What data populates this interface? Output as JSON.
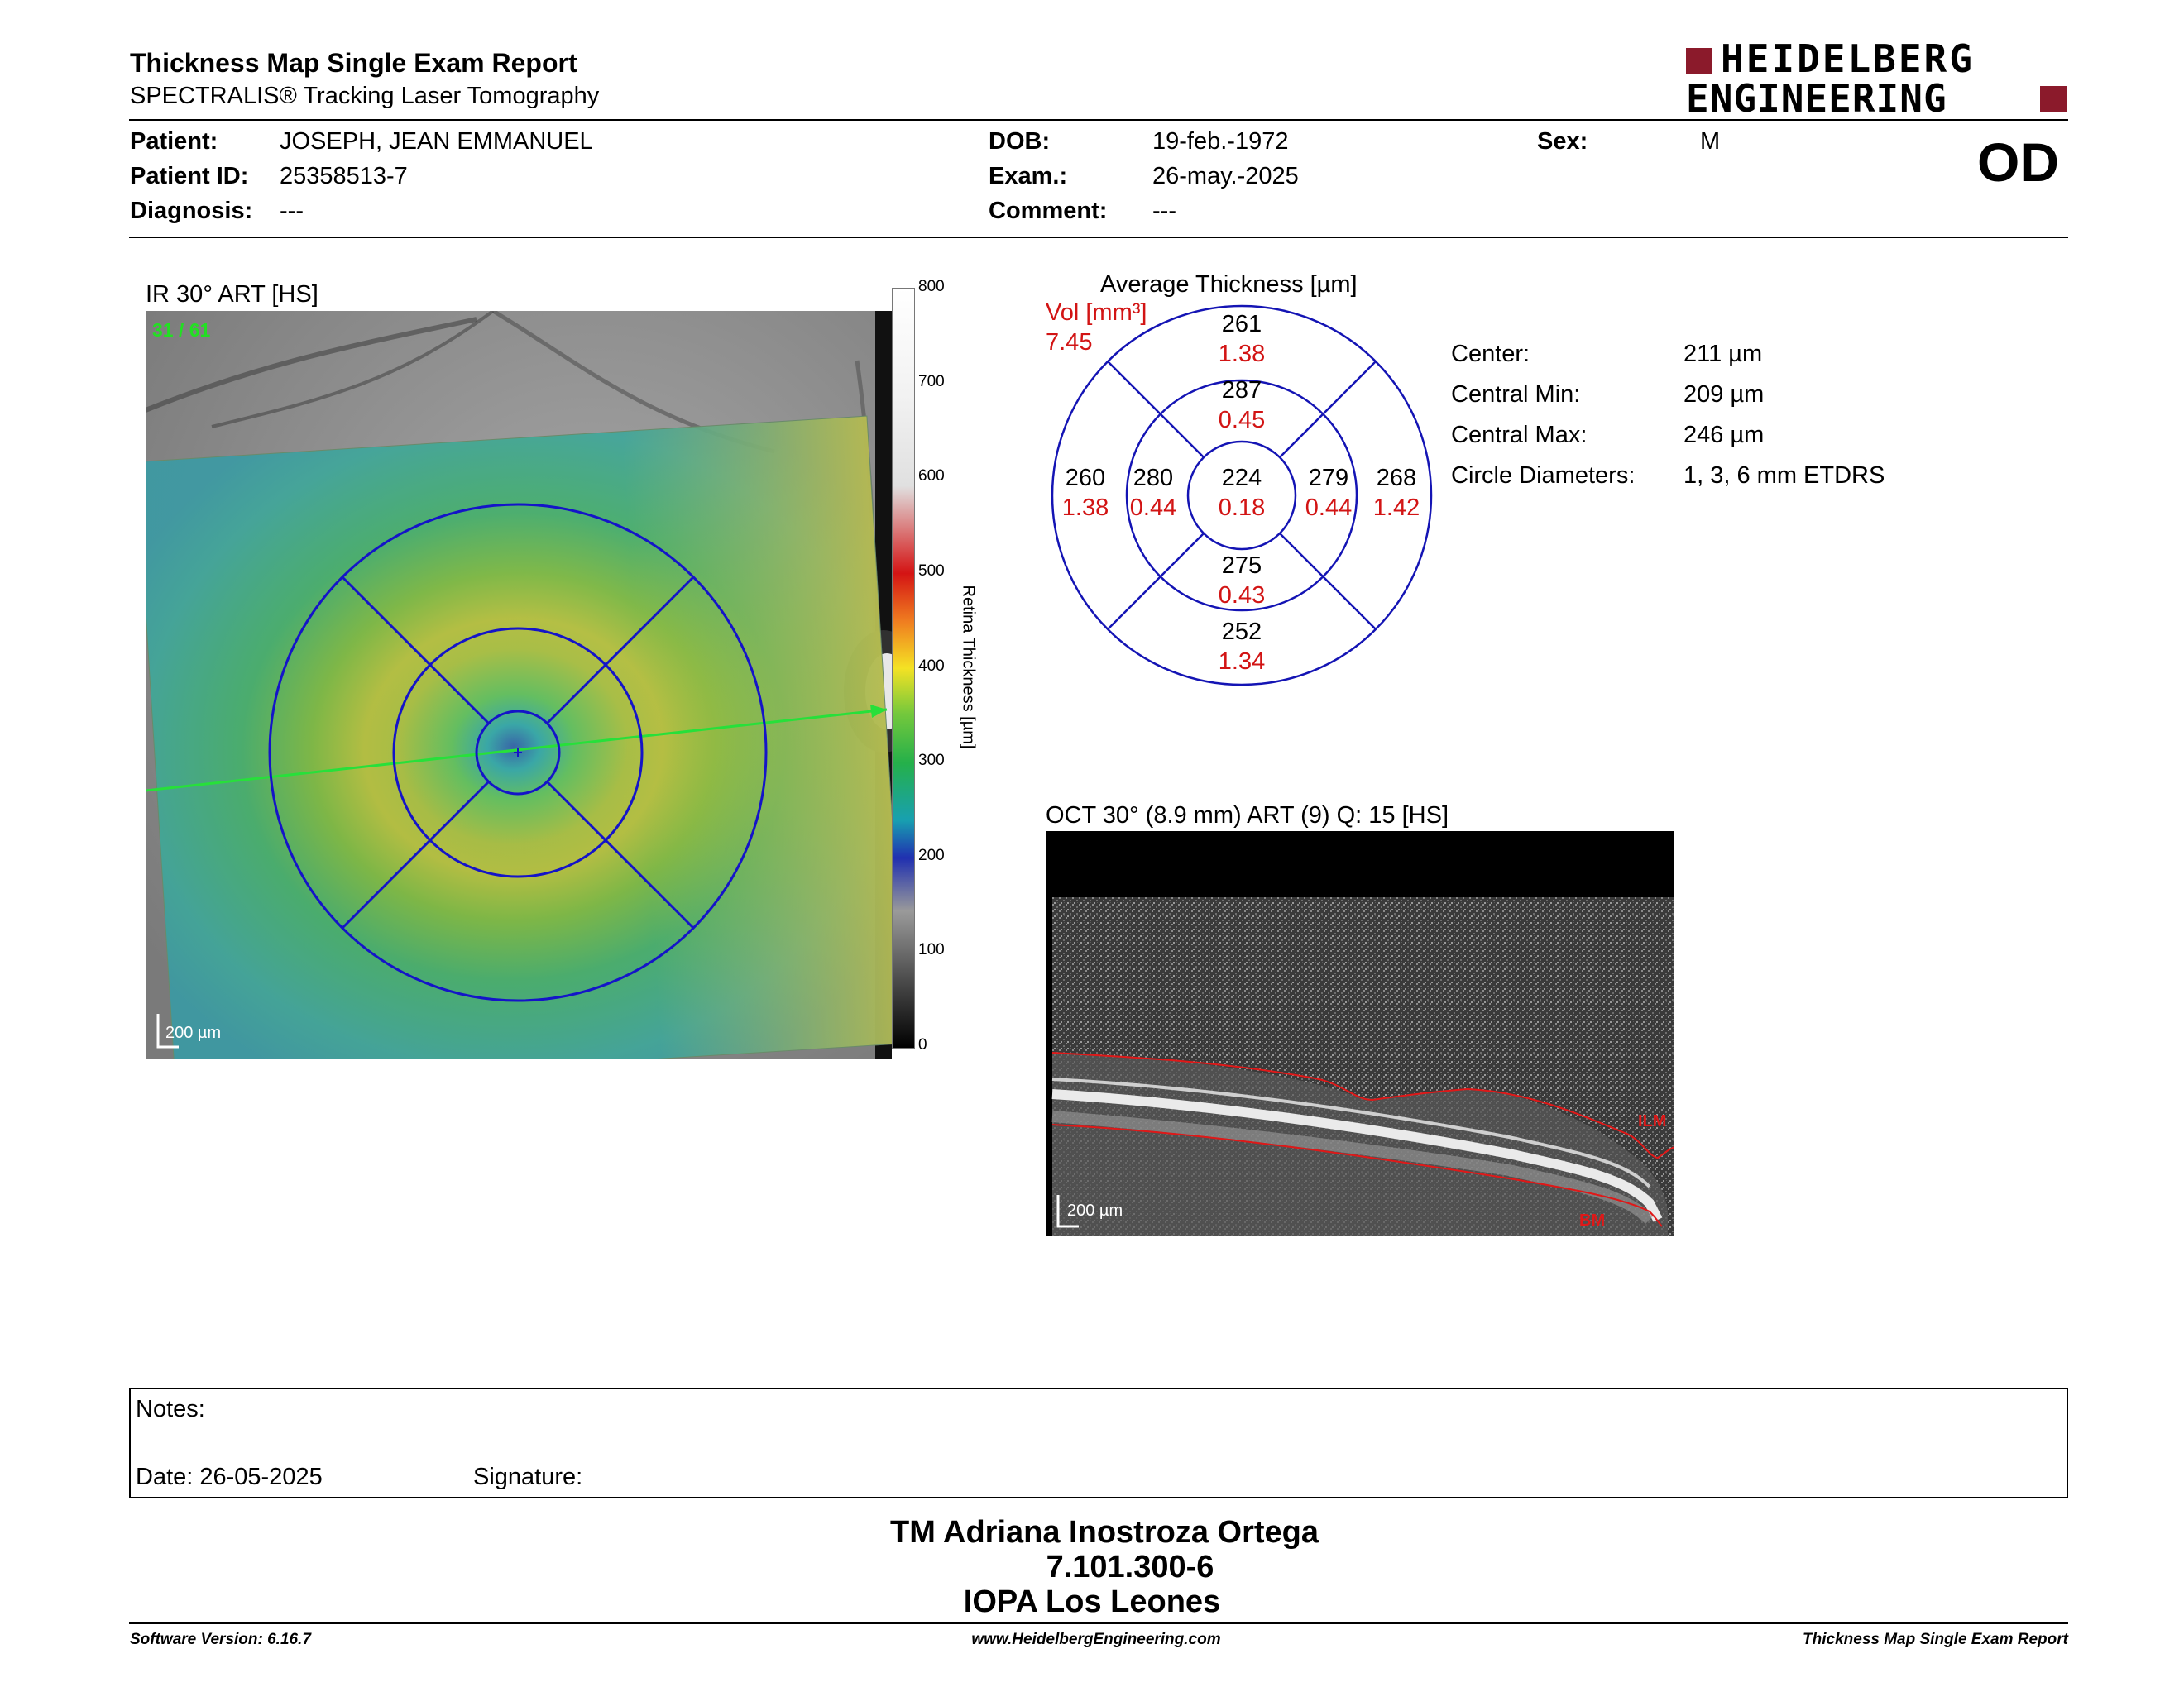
{
  "report": {
    "title": "Thickness Map Single Exam Report",
    "subtitle": "SPECTRALIS® Tracking Laser Tomography",
    "eye": "OD"
  },
  "brand": {
    "line1": "HEIDELBERG",
    "line2": "ENGINEERING",
    "color": "#8b1a2b"
  },
  "patient": {
    "name_label": "Patient:",
    "name": "JOSEPH, JEAN EMMANUEL",
    "id_label": "Patient ID:",
    "id": "25358513-7",
    "diagnosis_label": "Diagnosis:",
    "diagnosis": "---",
    "dob_label": "DOB:",
    "dob": "19-feb.-1972",
    "exam_label": "Exam.:",
    "exam": "26-may.-2025",
    "comment_label": "Comment:",
    "comment": "---",
    "sex_label": "Sex:",
    "sex": "M"
  },
  "ir_image": {
    "title": "IR 30° ART [HS]",
    "frame": "31 / 61",
    "scale": "200 µm",
    "colorbar": {
      "label": "Retina Thickness [µm]",
      "ticks": [
        "800",
        "700",
        "600",
        "500",
        "400",
        "300",
        "200",
        "100",
        "0"
      ]
    }
  },
  "etdrs": {
    "title": "Average Thickness [µm]",
    "vol_label": "Vol [mm³]",
    "vol_total": "7.45",
    "sectors": {
      "center": {
        "thickness": "224",
        "volume": "0.18"
      },
      "inner_superior": {
        "thickness": "287",
        "volume": "0.45"
      },
      "inner_inferior": {
        "thickness": "275",
        "volume": "0.43"
      },
      "inner_nasal_left": {
        "thickness": "280",
        "volume": "0.44"
      },
      "inner_temporal_right": {
        "thickness": "279",
        "volume": "0.44"
      },
      "outer_superior": {
        "thickness": "261",
        "volume": "1.38"
      },
      "outer_inferior": {
        "thickness": "252",
        "volume": "1.34"
      },
      "outer_left": {
        "thickness": "260",
        "volume": "1.38"
      },
      "outer_right": {
        "thickness": "268",
        "volume": "1.42"
      }
    }
  },
  "stats": {
    "center_label": "Center:",
    "center": "211 µm",
    "min_label": "Central Min:",
    "min": "209 µm",
    "max_label": "Central Max:",
    "max": "246 µm",
    "diam_label": "Circle Diameters:",
    "diam": "1, 3, 6 mm ETDRS"
  },
  "oct_image": {
    "title": "OCT 30° (8.9 mm) ART (9) Q: 15 [HS]",
    "scale": "200 µm",
    "ilm_label": "ILM",
    "bm_label": "BM"
  },
  "notes": {
    "label": "Notes:",
    "date": "Date: 26-05-2025",
    "signature_label": "Signature:"
  },
  "signature_block": {
    "name": "TM Adriana Inostroza Ortega",
    "rut": "7.101.300-6",
    "institution": "IOPA Los Leones"
  },
  "footer": {
    "version": "Software Version: 6.16.7",
    "website": "www.HeidelbergEngineering.com",
    "report_name": "Thickness Map Single Exam Report"
  }
}
